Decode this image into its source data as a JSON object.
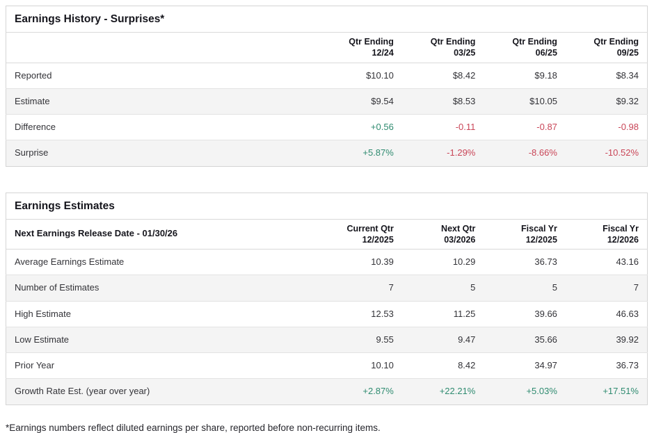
{
  "colors": {
    "positive": "#2f8b70",
    "negative": "#c94557"
  },
  "earnings_history": {
    "title": "Earnings History - Surprises*",
    "columns": [
      {
        "line1": "Qtr Ending",
        "line2": "12/24"
      },
      {
        "line1": "Qtr Ending",
        "line2": "03/25"
      },
      {
        "line1": "Qtr Ending",
        "line2": "06/25"
      },
      {
        "line1": "Qtr Ending",
        "line2": "09/25"
      }
    ],
    "rows": [
      {
        "label": "Reported",
        "values": [
          "$10.10",
          "$8.42",
          "$9.18",
          "$8.34"
        ],
        "tones": [
          "",
          "",
          "",
          ""
        ]
      },
      {
        "label": "Estimate",
        "values": [
          "$9.54",
          "$8.53",
          "$10.05",
          "$9.32"
        ],
        "tones": [
          "",
          "",
          "",
          ""
        ]
      },
      {
        "label": "Difference",
        "values": [
          "+0.56",
          "-0.11",
          "-0.87",
          "-0.98"
        ],
        "tones": [
          "pos",
          "neg",
          "neg",
          "neg"
        ]
      },
      {
        "label": "Surprise",
        "values": [
          "+5.87%",
          "-1.29%",
          "-8.66%",
          "-10.52%"
        ],
        "tones": [
          "pos",
          "neg",
          "neg",
          "neg"
        ]
      }
    ]
  },
  "earnings_estimates": {
    "title": "Earnings Estimates",
    "release_date_label": "Next Earnings Release Date - 01/30/26",
    "columns": [
      {
        "line1": "Current Qtr",
        "line2": "12/2025"
      },
      {
        "line1": "Next Qtr",
        "line2": "03/2026"
      },
      {
        "line1": "Fiscal Yr",
        "line2": "12/2025"
      },
      {
        "line1": "Fiscal Yr",
        "line2": "12/2026"
      }
    ],
    "rows": [
      {
        "label": "Average Earnings Estimate",
        "values": [
          "10.39",
          "10.29",
          "36.73",
          "43.16"
        ],
        "tones": [
          "",
          "",
          "",
          ""
        ]
      },
      {
        "label": "Number of Estimates",
        "values": [
          "7",
          "5",
          "5",
          "7"
        ],
        "tones": [
          "",
          "",
          "",
          ""
        ]
      },
      {
        "label": "High Estimate",
        "values": [
          "12.53",
          "11.25",
          "39.66",
          "46.63"
        ],
        "tones": [
          "",
          "",
          "",
          ""
        ]
      },
      {
        "label": "Low Estimate",
        "values": [
          "9.55",
          "9.47",
          "35.66",
          "39.92"
        ],
        "tones": [
          "",
          "",
          "",
          ""
        ]
      },
      {
        "label": "Prior Year",
        "values": [
          "10.10",
          "8.42",
          "34.97",
          "36.73"
        ],
        "tones": [
          "",
          "",
          "",
          ""
        ]
      },
      {
        "label": "Growth Rate Est. (year over year)",
        "values": [
          "+2.87%",
          "+22.21%",
          "+5.03%",
          "+17.51%"
        ],
        "tones": [
          "pos",
          "pos",
          "pos",
          "pos"
        ]
      }
    ]
  },
  "footnote": "*Earnings numbers reflect diluted earnings per share, reported before non-recurring items."
}
